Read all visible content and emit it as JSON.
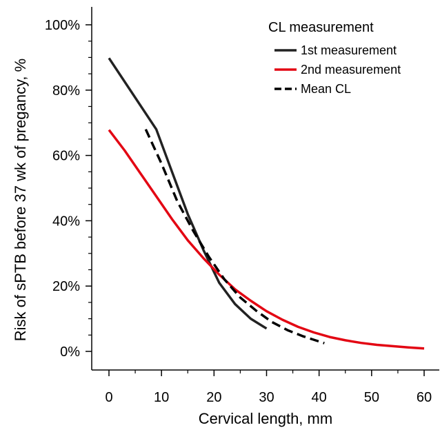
{
  "chart_data": {
    "type": "line",
    "xlabel": "Cervical length, mm",
    "ylabel": "Risk of sPTB before 37 wk of pregancy, %",
    "xlim": [
      0,
      60
    ],
    "ylim": [
      0,
      100
    ],
    "x_ticks": [
      0,
      10,
      20,
      30,
      40,
      50,
      60
    ],
    "y_ticks": [
      0,
      20,
      40,
      60,
      80,
      100
    ],
    "y_tick_labels": [
      "0%",
      "20%",
      "40%",
      "60%",
      "80%",
      "100%"
    ],
    "grid": false,
    "legend": {
      "title": "CL measurement",
      "position": "top-right"
    },
    "series": [
      {
        "name": "1st measurement",
        "color": "#222222",
        "dash": "solid",
        "points": [
          [
            0,
            89.8
          ],
          [
            9,
            68.0
          ],
          [
            12,
            55.0
          ],
          [
            15,
            42.0
          ],
          [
            18,
            31.0
          ],
          [
            21,
            21.0
          ],
          [
            24,
            14.5
          ],
          [
            27,
            10.0
          ],
          [
            30,
            7.0
          ]
        ]
      },
      {
        "name": "2nd measurement",
        "color": "#e30613",
        "dash": "solid",
        "points": [
          [
            0,
            67.8
          ],
          [
            3,
            61.5
          ],
          [
            6,
            54.5
          ],
          [
            9,
            47.5
          ],
          [
            12,
            40.5
          ],
          [
            15,
            34.0
          ],
          [
            18,
            28.5
          ],
          [
            21,
            23.5
          ],
          [
            24,
            19.0
          ],
          [
            27,
            15.5
          ],
          [
            30,
            12.3
          ],
          [
            33,
            9.7
          ],
          [
            36,
            7.5
          ],
          [
            39,
            5.8
          ],
          [
            42,
            4.4
          ],
          [
            45,
            3.4
          ],
          [
            48,
            2.6
          ],
          [
            51,
            2.0
          ],
          [
            54,
            1.6
          ],
          [
            57,
            1.2
          ],
          [
            60,
            0.9
          ]
        ]
      },
      {
        "name": "Mean CL",
        "color": "#000000",
        "dash": "dashed",
        "points": [
          [
            7,
            68.0
          ],
          [
            10,
            57.5
          ],
          [
            13,
            46.0
          ],
          [
            16,
            37.0
          ],
          [
            19,
            29.0
          ],
          [
            22,
            22.0
          ],
          [
            25,
            16.5
          ],
          [
            28,
            12.5
          ],
          [
            31,
            9.0
          ],
          [
            34,
            6.5
          ],
          [
            37,
            4.6
          ],
          [
            41,
            2.5
          ]
        ]
      }
    ]
  }
}
